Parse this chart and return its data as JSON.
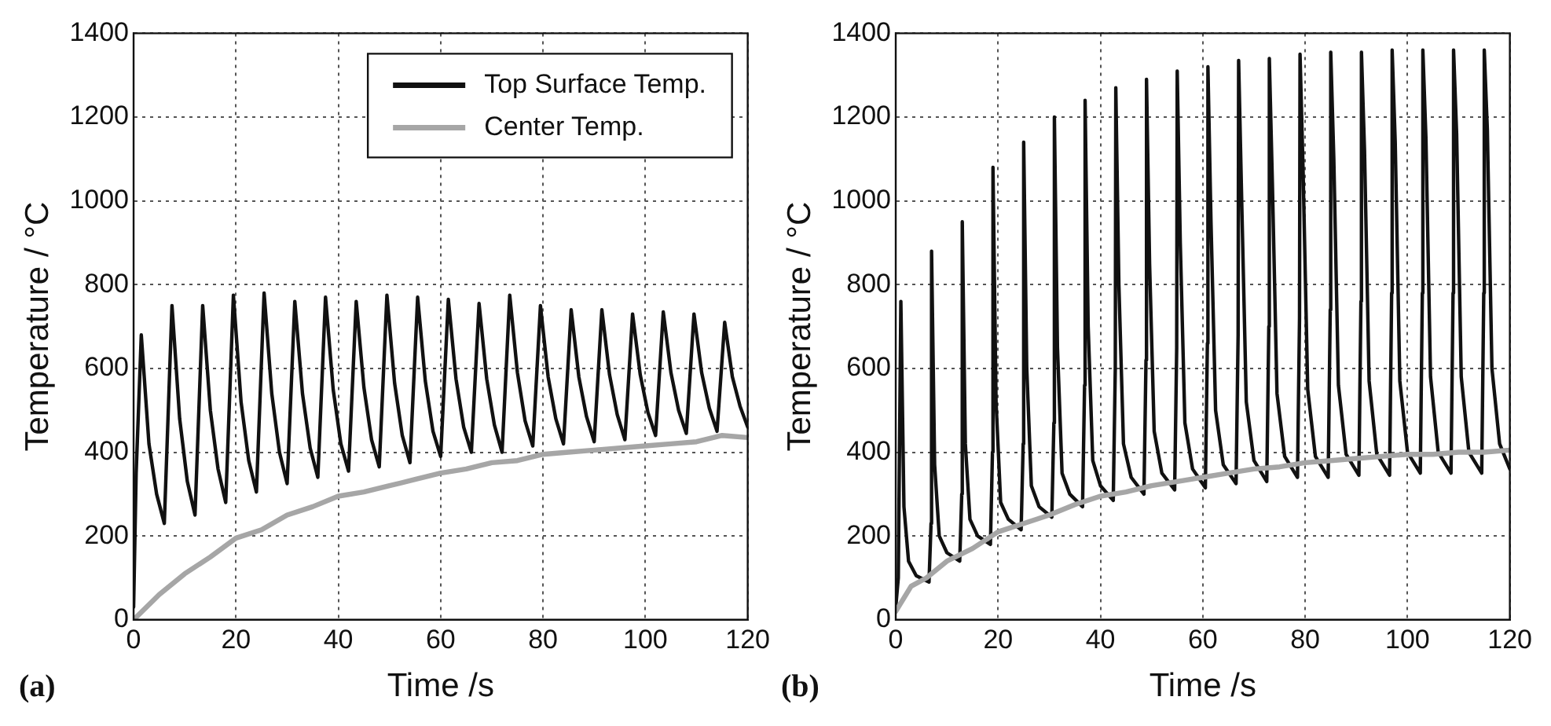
{
  "chart_data": [
    {
      "type": "line",
      "xlabel": "Time /s",
      "ylabel": "Temperature / °C",
      "annotations": [
        "(a)"
      ],
      "xlim": [
        0,
        120
      ],
      "xticks": [
        0,
        20,
        40,
        60,
        80,
        100,
        120
      ],
      "ylim": [
        0,
        1400
      ],
      "yticks": [
        0,
        200,
        400,
        600,
        800,
        1000,
        1200,
        1400
      ],
      "grid": true,
      "legend": "top right",
      "line_style": "solid",
      "marker": "none",
      "series": [
        {
          "name": "Top Surface Temp.",
          "color": "#111111",
          "x": [
            0,
            0.5,
            1.5,
            3,
            4.5,
            6,
            7.5,
            9,
            10.5,
            12,
            13.5,
            15,
            16.5,
            18,
            19.5,
            21,
            22.5,
            24,
            25.5,
            27,
            28.5,
            30,
            31.5,
            33,
            34.5,
            36,
            37.5,
            39,
            40.5,
            42,
            43.5,
            45,
            46.5,
            48,
            49.5,
            51,
            52.5,
            54,
            55.5,
            57,
            58.5,
            60,
            61.5,
            63,
            64.5,
            66,
            67.5,
            69,
            70.5,
            72,
            73.5,
            75,
            76.5,
            78,
            79.5,
            81,
            82.5,
            84,
            85.5,
            87,
            88.5,
            90,
            91.5,
            93,
            94.5,
            96,
            97.5,
            99,
            100.5,
            102,
            103.5,
            105,
            106.5,
            108,
            109.5,
            111,
            112.5,
            114,
            115.5,
            117,
            118.5,
            120
          ],
          "values": [
            30,
            350,
            680,
            420,
            300,
            230,
            750,
            480,
            330,
            250,
            750,
            500,
            360,
            280,
            775,
            520,
            380,
            305,
            780,
            540,
            400,
            325,
            760,
            540,
            410,
            340,
            770,
            550,
            420,
            355,
            760,
            555,
            430,
            365,
            775,
            565,
            440,
            375,
            770,
            570,
            450,
            390,
            765,
            575,
            460,
            400,
            755,
            575,
            465,
            400,
            775,
            590,
            475,
            415,
            750,
            580,
            480,
            420,
            740,
            580,
            485,
            425,
            740,
            585,
            490,
            430,
            730,
            585,
            495,
            440,
            735,
            590,
            500,
            445,
            730,
            590,
            505,
            450,
            710,
            580,
            510,
            460
          ]
        },
        {
          "name": "Center Temp.",
          "color": "#a6a6a6",
          "x": [
            0,
            5,
            10,
            15,
            20,
            25,
            30,
            35,
            40,
            45,
            50,
            55,
            60,
            65,
            70,
            75,
            80,
            85,
            90,
            95,
            100,
            105,
            110,
            115,
            120
          ],
          "values": [
            0,
            60,
            110,
            150,
            195,
            215,
            250,
            270,
            295,
            305,
            320,
            335,
            350,
            360,
            375,
            380,
            395,
            400,
            405,
            410,
            415,
            420,
            425,
            440,
            435
          ]
        }
      ]
    },
    {
      "type": "line",
      "xlabel": "Time /s",
      "ylabel": "Temperature / °C",
      "annotations": [
        "(b)"
      ],
      "xlim": [
        0,
        120
      ],
      "xticks": [
        0,
        20,
        40,
        60,
        80,
        100,
        120
      ],
      "ylim": [
        0,
        1400
      ],
      "yticks": [
        0,
        200,
        400,
        600,
        800,
        1000,
        1200,
        1400
      ],
      "grid": true,
      "line_style": "solid",
      "marker": "none",
      "series": [
        {
          "color": "#a6a6a6",
          "x": [
            0,
            3,
            6,
            10,
            15,
            20,
            25,
            30,
            35,
            40,
            45,
            50,
            55,
            60,
            65,
            70,
            75,
            80,
            85,
            90,
            95,
            100,
            105,
            110,
            115,
            120
          ],
          "values": [
            20,
            80,
            100,
            140,
            170,
            210,
            230,
            250,
            275,
            295,
            305,
            320,
            330,
            340,
            350,
            360,
            365,
            375,
            380,
            385,
            390,
            395,
            395,
            400,
            400,
            405
          ]
        },
        {
          "color": "#111111",
          "x": [
            0,
            0.5,
            1,
            1.6,
            2.5,
            4,
            6.5,
            6.9,
            7,
            7.6,
            8.5,
            10,
            12.5,
            12.9,
            13,
            13.6,
            14.5,
            16,
            18.5,
            18.9,
            19,
            19.6,
            20.5,
            22,
            24.5,
            24.9,
            25,
            25.6,
            26.5,
            28,
            30.5,
            30.9,
            31,
            31.6,
            32.5,
            34,
            36.5,
            36.9,
            37,
            37.6,
            38.5,
            40,
            42.5,
            42.9,
            43,
            43.6,
            44.5,
            46,
            48.5,
            48.9,
            49,
            49.6,
            50.5,
            52,
            54.5,
            54.9,
            55,
            55.6,
            56.5,
            58,
            60.5,
            60.9,
            61,
            61.6,
            62.5,
            64,
            66.5,
            66.9,
            67,
            67.6,
            68.5,
            70,
            72.5,
            72.9,
            73,
            73.6,
            74.5,
            76,
            78.5,
            78.9,
            79,
            79.6,
            80.5,
            82,
            84.5,
            84.9,
            85,
            85.6,
            86.5,
            88,
            90.5,
            90.9,
            91,
            91.6,
            92.5,
            94,
            96.5,
            96.9,
            97,
            97.6,
            98.5,
            100,
            102.5,
            102.9,
            103,
            103.6,
            104.5,
            106,
            108.5,
            108.9,
            109,
            109.6,
            110.5,
            112,
            114.5,
            114.9,
            115,
            115.6,
            116.5,
            118,
            120
          ],
          "values": [
            30,
            100,
            760,
            270,
            140,
            105,
            90,
            230,
            880,
            370,
            200,
            160,
            140,
            300,
            950,
            420,
            240,
            200,
            180,
            400,
            1080,
            520,
            280,
            240,
            215,
            420,
            1140,
            600,
            320,
            270,
            245,
            470,
            1200,
            650,
            350,
            300,
            270,
            560,
            1240,
            700,
            380,
            320,
            285,
            600,
            1270,
            800,
            420,
            340,
            300,
            620,
            1290,
            850,
            450,
            350,
            310,
            650,
            1310,
            900,
            470,
            360,
            315,
            660,
            1320,
            950,
            500,
            370,
            325,
            680,
            1335,
            1000,
            520,
            380,
            330,
            700,
            1340,
            1040,
            540,
            390,
            340,
            720,
            1350,
            1070,
            550,
            390,
            340,
            740,
            1355,
            1100,
            560,
            395,
            345,
            760,
            1355,
            1120,
            570,
            395,
            345,
            780,
            1360,
            1140,
            570,
            400,
            350,
            780,
            1360,
            1150,
            580,
            400,
            350,
            780,
            1360,
            1160,
            580,
            400,
            350,
            780,
            1360,
            1170,
            600,
            420,
            360
          ]
        }
      ]
    }
  ]
}
